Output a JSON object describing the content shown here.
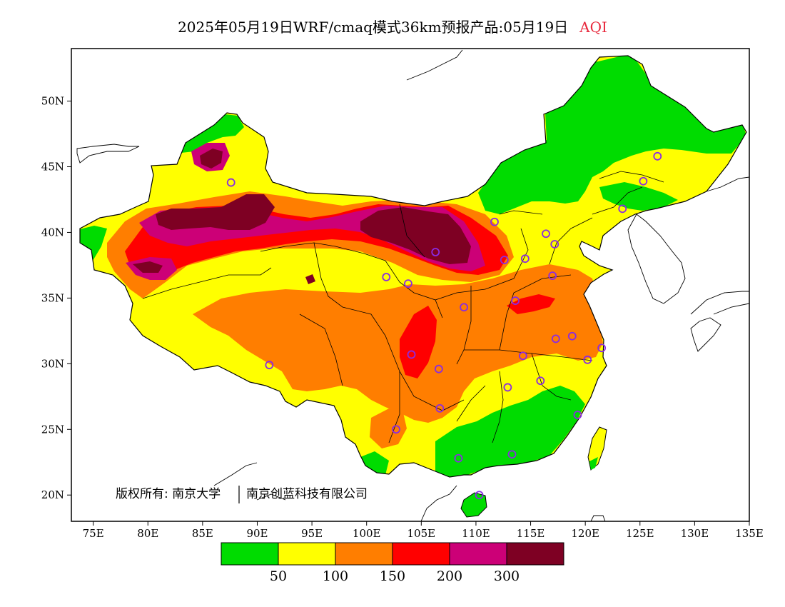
{
  "title": {
    "main": "2025年05月19日WRF/cmaq模式36km预报产品:05月19日",
    "variable": "AQI",
    "variable_color": "#e8283c"
  },
  "axes": {
    "x_ticks": [
      "75E",
      "80E",
      "85E",
      "90E",
      "95E",
      "100E",
      "105E",
      "110E",
      "115E",
      "120E",
      "125E",
      "130E",
      "135E"
    ],
    "y_ticks": [
      "20N",
      "25N",
      "30N",
      "35N",
      "40N",
      "45N",
      "50N"
    ],
    "lon_range": [
      73,
      135
    ],
    "lat_range": [
      18,
      54
    ]
  },
  "credit": {
    "owner_left": "版权所有: 南京大学",
    "owner_right": "南京创蓝科技有限公司"
  },
  "legend": {
    "colors": [
      "#00dc00",
      "#ffff00",
      "#ff7e00",
      "#ff0000",
      "#cc0077",
      "#7e0023"
    ],
    "labels": [
      "50",
      "100",
      "150",
      "200",
      "300"
    ]
  },
  "stations": [
    [
      87.6,
      43.8
    ],
    [
      91.1,
      29.9
    ],
    [
      101.8,
      36.6
    ],
    [
      103.8,
      36.1
    ],
    [
      106.3,
      38.5
    ],
    [
      111.7,
      40.8
    ],
    [
      116.4,
      39.9
    ],
    [
      117.2,
      39.1
    ],
    [
      114.5,
      38.0
    ],
    [
      112.6,
      37.9
    ],
    [
      108.9,
      34.3
    ],
    [
      104.1,
      30.7
    ],
    [
      106.6,
      29.6
    ],
    [
      106.7,
      26.6
    ],
    [
      102.7,
      25.0
    ],
    [
      108.4,
      22.8
    ],
    [
      113.3,
      23.1
    ],
    [
      110.3,
      20.0
    ],
    [
      119.3,
      26.1
    ],
    [
      115.9,
      28.7
    ],
    [
      112.9,
      28.2
    ],
    [
      114.3,
      30.6
    ],
    [
      117.3,
      31.9
    ],
    [
      118.8,
      32.1
    ],
    [
      120.2,
      30.3
    ],
    [
      121.5,
      31.2
    ],
    [
      117.0,
      36.7
    ],
    [
      113.6,
      34.8
    ],
    [
      123.4,
      41.8
    ],
    [
      125.3,
      43.9
    ],
    [
      126.6,
      45.8
    ]
  ]
}
